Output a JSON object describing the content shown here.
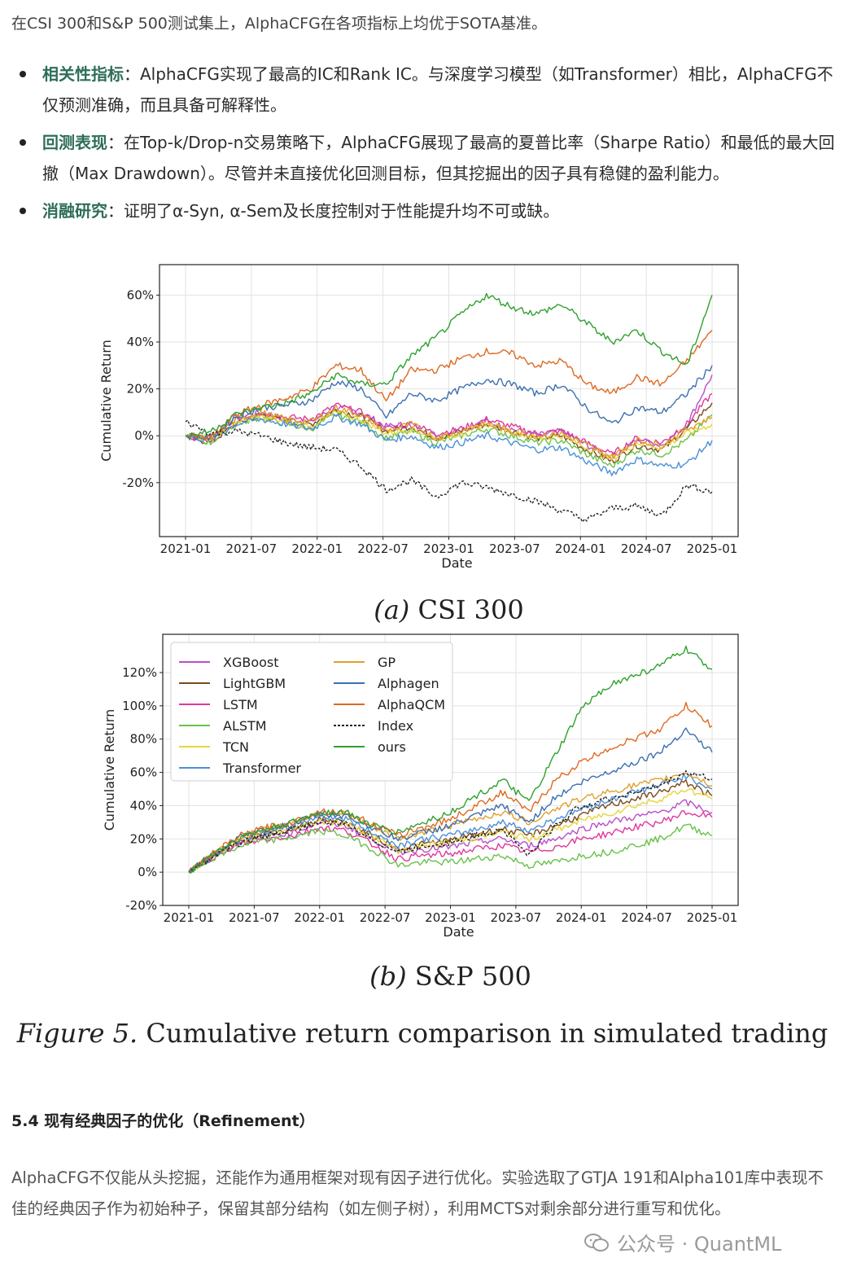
{
  "intro": "在CSI 300和S&P 500测试集上，AlphaCFG在各项指标上均优于SOTA基准。",
  "bullets": [
    {
      "keyword": "相关性指标",
      "text": "：AlphaCFG实现了最高的IC和Rank IC。与深度学习模型（如Transformer）相比，AlphaCFG不仅预测准确，而且具备可解释性。"
    },
    {
      "keyword": "回测表现",
      "text": "：在Top-k/Drop-n交易策略下，AlphaCFG展现了最高的夏普比率（Sharpe Ratio）和最低的最大回撤（Max Drawdown）。尽管并未直接优化回测目标，但其挖掘出的因子具有稳健的盈利能力。"
    },
    {
      "keyword": "消融研究",
      "text": "：证明了α-Syn, α-Sem及长度控制对于性能提升均不可或缺。"
    }
  ],
  "figure_caption": "Figure 5. Cumulative return comparison in simulated trading",
  "colors": {
    "XGBoost": "#b84fc9",
    "LightGBM": "#7a4a1e",
    "LSTM": "#e0389e",
    "ALSTM": "#69c24a",
    "TCN": "#e8d43a",
    "Transformer": "#4a90d9",
    "GP": "#e0a030",
    "Alphagen": "#3c70b0",
    "AlphaQCM": "#dd6a22",
    "Index": "#222222",
    "ours": "#2fa12f"
  },
  "chart_data": [
    {
      "type": "line",
      "panel": "(a) CSI 300",
      "caption": "(a) CSI 300",
      "xlabel": "Date",
      "ylabel": "Cumulative Return",
      "x_ticks": [
        "2021-01",
        "2021-07",
        "2022-01",
        "2022-07",
        "2023-01",
        "2023-07",
        "2024-01",
        "2024-07",
        "2025-01"
      ],
      "y_ticks": [
        "-20%",
        "0%",
        "20%",
        "40%",
        "60%"
      ],
      "ylim": [
        -43,
        73
      ],
      "grid": true,
      "legend": "none",
      "series": [
        {
          "name": "XGBoost",
          "dash": false,
          "values": [
            0,
            -2,
            8,
            10,
            7,
            6,
            12,
            10,
            4,
            5,
            0,
            3,
            6,
            3,
            0,
            2,
            -4,
            -9,
            -2,
            -4,
            5,
            26
          ]
        },
        {
          "name": "LightGBM",
          "dash": false,
          "values": [
            0,
            -3,
            5,
            9,
            6,
            5,
            11,
            8,
            2,
            4,
            -1,
            2,
            5,
            2,
            -1,
            0,
            -6,
            -11,
            -4,
            -6,
            3,
            14
          ]
        },
        {
          "name": "LSTM",
          "dash": false,
          "values": [
            0,
            -2,
            7,
            10,
            8,
            7,
            13,
            10,
            3,
            5,
            1,
            3,
            7,
            4,
            1,
            2,
            -3,
            -8,
            -1,
            -3,
            5,
            18
          ]
        },
        {
          "name": "ALSTM",
          "dash": false,
          "values": [
            0,
            -3,
            5,
            8,
            5,
            3,
            9,
            6,
            -1,
            2,
            -3,
            0,
            3,
            0,
            -3,
            -2,
            -8,
            -13,
            -6,
            -8,
            -2,
            9
          ]
        },
        {
          "name": "TCN",
          "dash": false,
          "values": [
            0,
            -1,
            6,
            8,
            6,
            4,
            10,
            7,
            1,
            3,
            -1,
            1,
            5,
            2,
            -1,
            0,
            -5,
            -10,
            -3,
            -5,
            1,
            5
          ]
        },
        {
          "name": "Transformer",
          "dash": false,
          "values": [
            0,
            -2,
            5,
            7,
            5,
            3,
            8,
            5,
            -2,
            0,
            -5,
            -3,
            0,
            -3,
            -6,
            -5,
            -11,
            -16,
            -10,
            -13,
            -12,
            -2
          ]
        },
        {
          "name": "GP",
          "dash": false,
          "values": [
            0,
            -2,
            7,
            10,
            7,
            6,
            12,
            9,
            2,
            5,
            -1,
            2,
            5,
            2,
            0,
            1,
            -4,
            -9,
            -2,
            -4,
            3,
            8
          ]
        },
        {
          "name": "Alphagen",
          "dash": false,
          "values": [
            0,
            -1,
            8,
            12,
            13,
            15,
            23,
            20,
            8,
            18,
            15,
            20,
            24,
            22,
            18,
            22,
            12,
            5,
            12,
            10,
            18,
            30
          ]
        },
        {
          "name": "AlphaQCM",
          "dash": false,
          "values": [
            0,
            -1,
            9,
            13,
            16,
            20,
            30,
            28,
            15,
            28,
            28,
            33,
            36,
            35,
            30,
            32,
            22,
            18,
            25,
            22,
            32,
            45
          ]
        },
        {
          "name": "Index",
          "dash": true,
          "values": [
            6,
            1,
            2,
            0,
            -3,
            -5,
            -6,
            -13,
            -23,
            -19,
            -26,
            -20,
            -22,
            -25,
            -28,
            -32,
            -36,
            -31,
            -30,
            -34,
            -21,
            -24
          ]
        },
        {
          "name": "ours",
          "dash": false,
          "values": [
            0,
            2,
            9,
            12,
            14,
            18,
            26,
            22,
            22,
            34,
            42,
            52,
            60,
            55,
            52,
            56,
            48,
            40,
            45,
            36,
            30,
            60
          ]
        }
      ]
    },
    {
      "type": "line",
      "panel": "(b) S&P 500",
      "caption": "(b) S&P 500",
      "xlabel": "Date",
      "ylabel": "Cumulative Return",
      "x_ticks": [
        "2021-01",
        "2021-07",
        "2022-01",
        "2022-07",
        "2023-01",
        "2023-07",
        "2024-01",
        "2024-07",
        "2025-01"
      ],
      "y_ticks": [
        "-20%",
        "0%",
        "20%",
        "40%",
        "60%",
        "80%",
        "100%",
        "120%"
      ],
      "ylim": [
        -20,
        143
      ],
      "grid": true,
      "legend": "top-left",
      "series": [
        {
          "name": "XGBoost",
          "dash": false,
          "values": [
            0,
            10,
            18,
            22,
            24,
            30,
            28,
            20,
            12,
            14,
            15,
            18,
            20,
            16,
            20,
            26,
            30,
            33,
            36,
            42,
            36
          ]
        },
        {
          "name": "LightGBM",
          "dash": false,
          "values": [
            0,
            11,
            19,
            23,
            26,
            32,
            30,
            22,
            14,
            17,
            19,
            23,
            26,
            22,
            28,
            34,
            40,
            44,
            48,
            54,
            46
          ]
        },
        {
          "name": "LSTM",
          "dash": false,
          "values": [
            0,
            10,
            17,
            20,
            22,
            27,
            25,
            17,
            8,
            10,
            11,
            14,
            16,
            12,
            15,
            20,
            23,
            27,
            30,
            36,
            33
          ]
        },
        {
          "name": "ALSTM",
          "dash": false,
          "values": [
            0,
            9,
            16,
            19,
            21,
            25,
            22,
            14,
            4,
            6,
            6,
            8,
            10,
            4,
            6,
            10,
            12,
            16,
            20,
            28,
            22
          ]
        },
        {
          "name": "TCN",
          "dash": false,
          "values": [
            0,
            11,
            19,
            23,
            26,
            31,
            29,
            22,
            13,
            16,
            18,
            21,
            24,
            20,
            25,
            31,
            35,
            40,
            44,
            50,
            44
          ]
        },
        {
          "name": "Transformer",
          "dash": false,
          "values": [
            0,
            11,
            20,
            24,
            28,
            34,
            32,
            24,
            16,
            20,
            22,
            26,
            30,
            25,
            32,
            38,
            43,
            48,
            52,
            58,
            50
          ]
        },
        {
          "name": "GP",
          "dash": false,
          "values": [
            0,
            12,
            21,
            26,
            30,
            36,
            35,
            27,
            20,
            24,
            28,
            32,
            36,
            30,
            38,
            44,
            48,
            52,
            55,
            60,
            52
          ]
        },
        {
          "name": "Alphagen",
          "dash": false,
          "values": [
            0,
            12,
            21,
            26,
            29,
            35,
            34,
            27,
            20,
            24,
            28,
            34,
            40,
            30,
            45,
            54,
            60,
            66,
            72,
            86,
            72
          ]
        },
        {
          "name": "AlphaQCM",
          "dash": false,
          "values": [
            0,
            12,
            22,
            27,
            30,
            37,
            36,
            29,
            22,
            27,
            32,
            40,
            48,
            36,
            55,
            66,
            74,
            80,
            86,
            100,
            88
          ]
        },
        {
          "name": "Index",
          "dash": true,
          "values": [
            0,
            10,
            18,
            22,
            26,
            30,
            29,
            20,
            12,
            16,
            18,
            22,
            26,
            10,
            28,
            40,
            44,
            48,
            52,
            60,
            56
          ]
        },
        {
          "name": "ours",
          "dash": false,
          "values": [
            0,
            12,
            21,
            26,
            30,
            36,
            36,
            28,
            24,
            30,
            36,
            46,
            55,
            42,
            70,
            98,
            112,
            118,
            124,
            134,
            122
          ]
        }
      ]
    }
  ],
  "section_title": "5.4 现有经典因子的优化（Refinement）",
  "paragraph": "AlphaCFG不仅能从头挖掘，还能作为通用框架对现有因子进行优化。实验选取了GTJA 191和Alpha101库中表现不佳的经典因子作为初始种子，保留其部分结构（如左侧子树），利用MCTS对剩余部分进行重写和优化。",
  "watermark": "公众号 · QuantML"
}
